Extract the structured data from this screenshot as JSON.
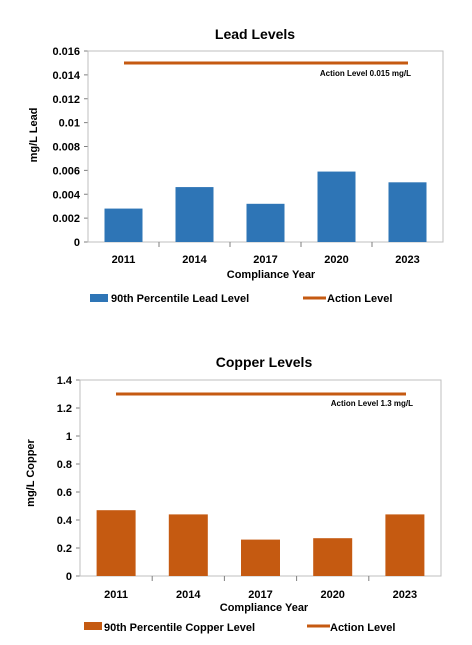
{
  "chart_data": [
    {
      "type": "bar",
      "title": "Lead Levels",
      "xlabel": "Compliance Year",
      "ylabel": "mg/L Lead",
      "categories": [
        "2011",
        "2014",
        "2017",
        "2020",
        "2023"
      ],
      "ylim": [
        0,
        0.016
      ],
      "yticks": [
        "0",
        "0.002",
        "0.004",
        "0.006",
        "0.008",
        "0.01",
        "0.012",
        "0.014",
        "0.016"
      ],
      "series": [
        {
          "name": "90th Percentile Lead Level",
          "values": [
            0.0028,
            0.0046,
            0.0032,
            0.0059,
            0.005
          ],
          "color": "#2E75B6"
        }
      ],
      "action_level": {
        "name": "Action Level",
        "value": 0.015,
        "label": "Action Level 0.015 mg/L",
        "color": "#C55A11"
      },
      "grid": false,
      "legend_position": "bottom"
    },
    {
      "type": "bar",
      "title": "Copper Levels",
      "xlabel": "Compliance Year",
      "ylabel": "mg/L Copper",
      "categories": [
        "2011",
        "2014",
        "2017",
        "2020",
        "2023"
      ],
      "ylim": [
        0,
        1.4
      ],
      "yticks": [
        "0",
        "0.2",
        "0.4",
        "0.6",
        "0.8",
        "1",
        "1.2",
        "1.4"
      ],
      "series": [
        {
          "name": "90th Percentile Copper Level",
          "values": [
            0.47,
            0.44,
            0.26,
            0.27,
            0.44
          ],
          "color": "#C55A11"
        }
      ],
      "action_level": {
        "name": "Action Level",
        "value": 1.3,
        "label": "Action Level 1.3 mg/L",
        "color": "#C55A11"
      },
      "grid": false,
      "legend_position": "bottom"
    }
  ]
}
